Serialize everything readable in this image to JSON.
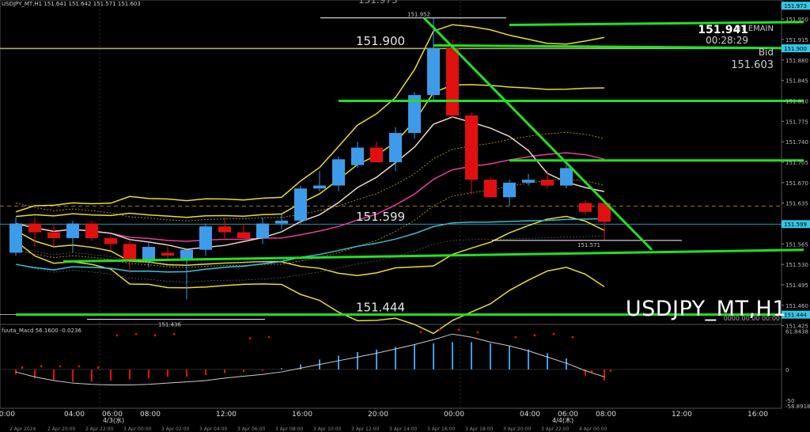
{
  "window": {
    "symbol_header": "USDJPY_MT,H1  151.641 151.642 151.571 151.603",
    "symbol_watermark": "USDJPY_MT,H1",
    "macd_label": "fuuta_Macd 56.1600  -0.0236",
    "last_price": "151.941",
    "info_top": "DT EMAIN",
    "countdown": "00:28:29",
    "bid_label": "Bid",
    "bid_value": "151.603"
  },
  "chart_data": [
    {
      "type": "candlestick",
      "title": "USDJPY_MT,H1",
      "ylim": [
        151.43,
        151.98
      ],
      "y_ticks": [
        151.425,
        151.46,
        151.495,
        151.53,
        151.565,
        151.6,
        151.635,
        151.67,
        151.705,
        151.74,
        151.775,
        151.81,
        151.845,
        151.88,
        151.915,
        151.95
      ],
      "y_tick_labels": [
        "151.425",
        "151.460",
        "151.495",
        "151.530",
        "151.565",
        "151.600",
        "151.635",
        "151.670",
        "151.705",
        "151.740",
        "151.775",
        "151.810",
        "151.845",
        "151.880",
        "151.915",
        "151.950"
      ],
      "grid": false,
      "colors": {
        "bull": "#3d9be9",
        "bear": "#e01010",
        "trend": "#22e022",
        "band": "#e8dc30",
        "ma_cyan": "#33c7e8",
        "ma_pink": "#e63f9b",
        "ma_white": "#e8d8c8"
      },
      "candles": [
        {
          "o": 151.55,
          "h": 151.61,
          "l": 151.545,
          "c": 151.6
        },
        {
          "o": 151.6,
          "h": 151.61,
          "l": 151.56,
          "c": 151.585
        },
        {
          "o": 151.585,
          "h": 151.6,
          "l": 151.56,
          "c": 151.575
        },
        {
          "o": 151.575,
          "h": 151.605,
          "l": 151.55,
          "c": 151.6
        },
        {
          "o": 151.6,
          "h": 151.605,
          "l": 151.57,
          "c": 151.575
        },
        {
          "o": 151.575,
          "h": 151.58,
          "l": 151.555,
          "c": 151.565
        },
        {
          "o": 151.565,
          "h": 151.57,
          "l": 151.515,
          "c": 151.535
        },
        {
          "o": 151.535,
          "h": 151.57,
          "l": 151.525,
          "c": 151.56
        },
        {
          "o": 151.55,
          "h": 151.56,
          "l": 151.535,
          "c": 151.545
        },
        {
          "o": 151.54,
          "h": 151.555,
          "l": 151.47,
          "c": 151.555
        },
        {
          "o": 151.555,
          "h": 151.6,
          "l": 151.545,
          "c": 151.595
        },
        {
          "o": 151.595,
          "h": 151.61,
          "l": 151.575,
          "c": 151.585
        },
        {
          "o": 151.585,
          "h": 151.6,
          "l": 151.57,
          "c": 151.575
        },
        {
          "o": 151.575,
          "h": 151.61,
          "l": 151.565,
          "c": 151.6
        },
        {
          "o": 151.6,
          "h": 151.615,
          "l": 151.59,
          "c": 151.605
        },
        {
          "o": 151.605,
          "h": 151.665,
          "l": 151.6,
          "c": 151.66
        },
        {
          "o": 151.66,
          "h": 151.69,
          "l": 151.655,
          "c": 151.665
        },
        {
          "o": 151.665,
          "h": 151.715,
          "l": 151.655,
          "c": 151.71
        },
        {
          "o": 151.7,
          "h": 151.74,
          "l": 151.695,
          "c": 151.73
        },
        {
          "o": 151.73,
          "h": 151.74,
          "l": 151.705,
          "c": 151.705
        },
        {
          "o": 151.705,
          "h": 151.765,
          "l": 151.69,
          "c": 151.755
        },
        {
          "o": 151.755,
          "h": 151.825,
          "l": 151.745,
          "c": 151.82
        },
        {
          "o": 151.82,
          "h": 151.952,
          "l": 151.81,
          "c": 151.9
        },
        {
          "o": 151.9,
          "h": 151.915,
          "l": 151.78,
          "c": 151.785
        },
        {
          "o": 151.785,
          "h": 151.79,
          "l": 151.65,
          "c": 151.675
        },
        {
          "o": 151.675,
          "h": 151.68,
          "l": 151.645,
          "c": 151.645
        },
        {
          "o": 151.645,
          "h": 151.675,
          "l": 151.63,
          "c": 151.67
        },
        {
          "o": 151.67,
          "h": 151.685,
          "l": 151.665,
          "c": 151.675
        },
        {
          "o": 151.675,
          "h": 151.69,
          "l": 151.66,
          "c": 151.665
        },
        {
          "o": 151.665,
          "h": 151.7,
          "l": 151.66,
          "c": 151.695
        },
        {
          "o": 151.635,
          "h": 151.64,
          "l": 151.615,
          "c": 151.62
        },
        {
          "o": 151.635,
          "h": 151.641,
          "l": 151.571,
          "c": 151.603
        }
      ],
      "levels": [
        {
          "value": 151.952,
          "label": "151.952"
        },
        {
          "value": 151.9,
          "label": "151.900"
        },
        {
          "value": 151.599,
          "label": "151.599"
        },
        {
          "value": 151.571,
          "label": "151.571"
        },
        {
          "value": 151.444,
          "label": "151.444"
        },
        {
          "value": 151.436,
          "label": "151.436"
        }
      ],
      "price_tags": [
        {
          "value": 151.973,
          "label": "151.973"
        },
        {
          "value": 151.9,
          "label": "151.900"
        },
        {
          "value": 151.599,
          "label": "151.599"
        },
        {
          "value": 151.444,
          "label": "151.444"
        }
      ],
      "top_partial_label": "151.973",
      "trend_segments": [
        {
          "x1": 21.5,
          "y1": 151.952,
          "x2": 33.5,
          "y2": 151.555
        },
        {
          "x1": 2.5,
          "y1": 151.535,
          "x2": 41.5,
          "y2": 151.555
        },
        {
          "x1": 17,
          "y1": 151.81,
          "x2": 41.5,
          "y2": 151.81
        },
        {
          "x1": 26,
          "y1": 151.94,
          "x2": 41.5,
          "y2": 151.945
        },
        {
          "x1": 22,
          "y1": 151.905,
          "x2": 41.5,
          "y2": 151.9
        },
        {
          "x1": 26,
          "y1": 151.708,
          "x2": 41.5,
          "y2": 151.708
        },
        {
          "x1": 0,
          "y1": 151.444,
          "x2": 41.5,
          "y2": 151.444
        }
      ],
      "footer_text": "0000.00.00 00:00"
    },
    {
      "type": "bar",
      "title": "fuuta_Macd",
      "ylim": [
        -60,
        70
      ],
      "y_tick_labels": [
        "61.8438",
        "0",
        "-50",
        "-58.8918"
      ],
      "values": [
        -8,
        -14,
        -18,
        -20,
        -20,
        -18,
        -16,
        -14,
        -12,
        -12,
        -9,
        -6,
        -4,
        -2,
        2,
        8,
        16,
        22,
        28,
        32,
        36,
        40,
        42,
        44,
        44,
        42,
        38,
        32,
        26,
        18,
        -10,
        -18
      ],
      "signal": [
        -4,
        -12,
        -18,
        -22,
        -24,
        -25,
        -25,
        -24,
        -22,
        -20,
        -18,
        -14,
        -11,
        -8,
        -4,
        2,
        8,
        14,
        20,
        26,
        33,
        40,
        48,
        57,
        52,
        44,
        38,
        30,
        20,
        10,
        -2,
        -12
      ],
      "red_dots_pos": [
        [
          5,
          55
        ],
        [
          6,
          57
        ],
        [
          7,
          55
        ],
        [
          8,
          57
        ],
        [
          12,
          50
        ],
        [
          13,
          52
        ],
        [
          21,
          60
        ],
        [
          22,
          64
        ],
        [
          23,
          64
        ],
        [
          24,
          60
        ],
        [
          26,
          52
        ],
        [
          27,
          55
        ],
        [
          28,
          57
        ],
        [
          29,
          52
        ]
      ],
      "red_dots_neg": [
        [
          0,
          3
        ],
        [
          1,
          5
        ],
        [
          2,
          5
        ],
        [
          3,
          5
        ],
        [
          4,
          3
        ],
        [
          30,
          -3
        ],
        [
          31,
          -2
        ]
      ]
    }
  ],
  "time_axis": {
    "major_labels": [
      "00:00",
      "04:00",
      "06:00",
      "08:00",
      "12:00",
      "16:00",
      "20:00",
      "00:00",
      "04:00",
      "06:00",
      "08:00",
      "12:00",
      "16:00"
    ],
    "date_labels": [
      "4/3(水)",
      "4/4(木)"
    ],
    "footer_dates": [
      "2 Apr 2024",
      "2 Apr 20:00",
      "2 Apr 22:00",
      "3 Apr 00:00",
      "3 Apr 02:00",
      "3 Apr 04:00",
      "3 Apr 06:00",
      "3 Apr 08:00",
      "3 Apr 10:00",
      "3 Apr 12:00",
      "3 Apr 14:00",
      "3 Apr 16:00",
      "3 Apr 18:00",
      "3 Apr 20:00",
      "3 Apr 22:00",
      "4 Apr 00:00"
    ]
  }
}
